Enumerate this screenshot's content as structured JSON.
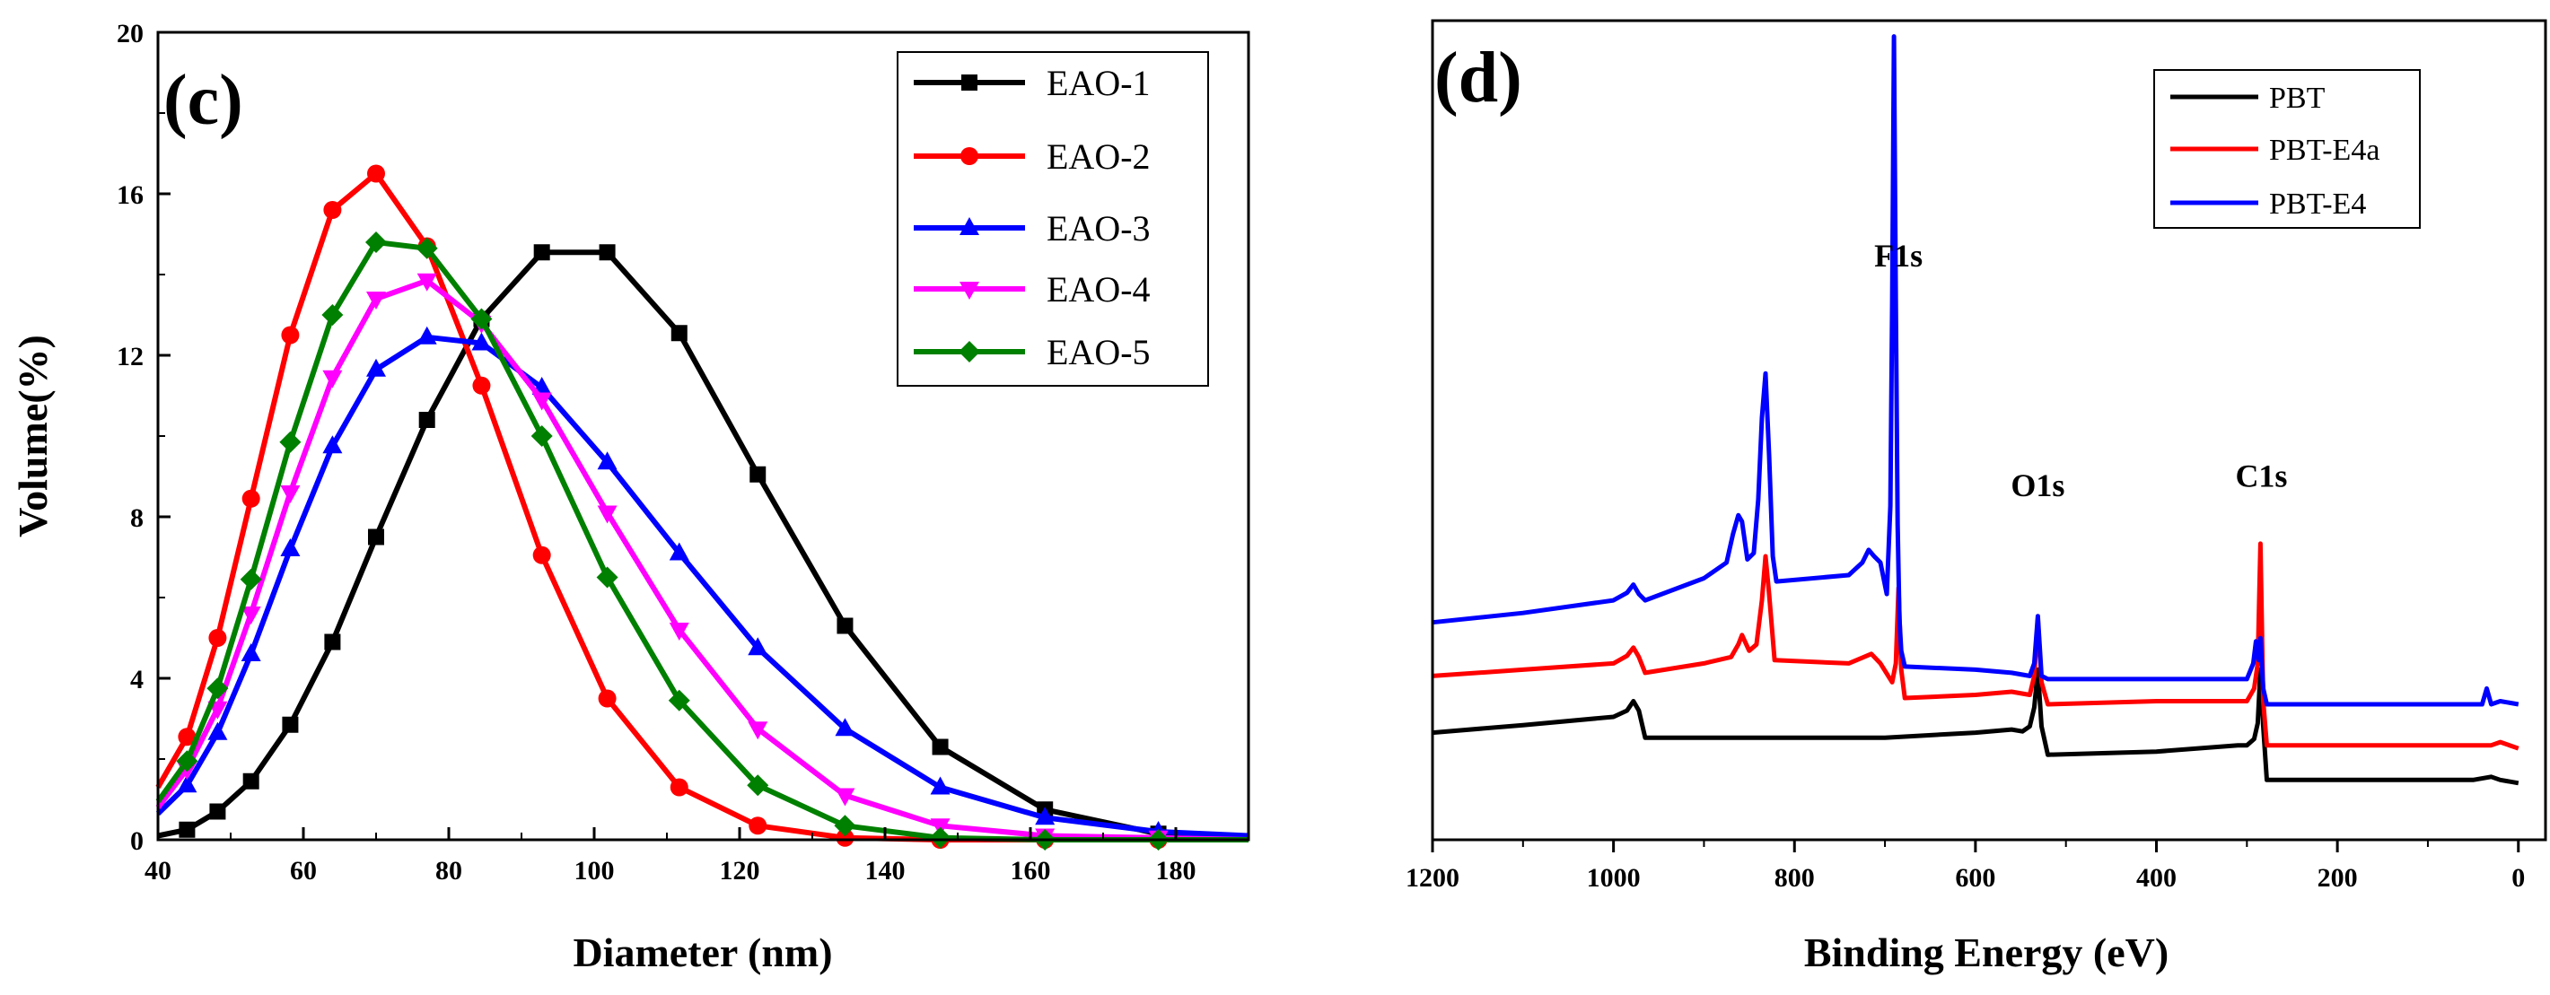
{
  "chart_data": [
    {
      "type": "line",
      "panel_label": "(c)",
      "xlabel": "Diameter (nm)",
      "ylabel": "Volume(%)",
      "xlim": [
        40,
        190
      ],
      "ylim": [
        0,
        20
      ],
      "xticks": [
        40,
        60,
        80,
        100,
        120,
        140,
        160,
        180
      ],
      "yticks": [
        0,
        4,
        8,
        12,
        16,
        20
      ],
      "grid": false,
      "legend_position": "top-right",
      "series": [
        {
          "name": "EAO-1",
          "color": "#000000",
          "marker": "square",
          "x": [
            40,
            44,
            48.2,
            52.8,
            58.2,
            64,
            70,
            77,
            84.5,
            92.8,
            101.8,
            111.7,
            122.5,
            134.5,
            147.6,
            162,
            177.6,
            190
          ],
          "y": [
            0.1,
            0.25,
            0.7,
            1.45,
            2.85,
            4.9,
            7.5,
            10.4,
            12.9,
            14.55,
            14.55,
            12.55,
            9.05,
            5.3,
            2.3,
            0.75,
            0.15,
            0.05
          ]
        },
        {
          "name": "EAO-2",
          "color": "#ff0000",
          "marker": "circle",
          "x": [
            40,
            44,
            48.2,
            52.8,
            58.2,
            64,
            70,
            77,
            84.5,
            92.8,
            101.8,
            111.7,
            122.5,
            134.5,
            147.6,
            162,
            177.6,
            190
          ],
          "y": [
            1.3,
            2.55,
            5.0,
            8.45,
            12.5,
            15.6,
            16.5,
            14.7,
            11.25,
            7.05,
            3.5,
            1.3,
            0.35,
            0.05,
            0,
            0,
            0,
            0
          ]
        },
        {
          "name": "EAO-3",
          "color": "#0000ff",
          "marker": "triangle-up",
          "x": [
            40,
            44,
            48.2,
            52.8,
            58.2,
            64,
            70,
            77,
            84.5,
            92.8,
            101.8,
            111.7,
            122.5,
            134.5,
            147.6,
            162,
            177.6,
            190
          ],
          "y": [
            0.65,
            1.35,
            2.65,
            4.6,
            7.2,
            9.75,
            11.65,
            12.45,
            12.3,
            11.2,
            9.35,
            7.1,
            4.75,
            2.75,
            1.3,
            0.55,
            0.2,
            0.1
          ]
        },
        {
          "name": "EAO-4",
          "color": "#ff00ff",
          "marker": "triangle-down",
          "x": [
            40,
            44,
            48.2,
            52.8,
            58.2,
            64,
            70,
            77,
            84.5,
            92.8,
            101.8,
            111.7,
            122.5,
            134.5,
            147.6,
            162,
            177.6,
            190
          ],
          "y": [
            0.8,
            1.75,
            3.25,
            5.6,
            8.6,
            11.45,
            13.4,
            13.85,
            12.8,
            10.9,
            8.1,
            5.2,
            2.75,
            1.1,
            0.35,
            0.1,
            0.05,
            0
          ]
        },
        {
          "name": "EAO-5",
          "color": "#008000",
          "marker": "diamond",
          "x": [
            40,
            44,
            48.2,
            52.8,
            58.2,
            64,
            70,
            77,
            84.5,
            92.8,
            101.8,
            111.7,
            122.5,
            134.5,
            147.6,
            162,
            177.6,
            190
          ],
          "y": [
            0.95,
            1.95,
            3.75,
            6.45,
            9.85,
            13.0,
            14.8,
            14.65,
            12.9,
            10.0,
            6.5,
            3.45,
            1.35,
            0.35,
            0.05,
            0,
            0,
            0
          ]
        }
      ]
    },
    {
      "type": "line",
      "panel_label": "(d)",
      "xlabel": "Binding Energy (eV)",
      "ylabel": "",
      "xlim": [
        1200,
        -30
      ],
      "ylim": [
        -1.5,
        11.5
      ],
      "xticks": [
        1200,
        1000,
        800,
        600,
        400,
        200,
        0
      ],
      "grid": false,
      "legend_position": "top-right",
      "peak_labels": [
        {
          "text": "F1s",
          "x": 685,
          "y": 7.6
        },
        {
          "text": "O1s",
          "x": 531,
          "y": 3.95
        },
        {
          "text": "C1s",
          "x": 284,
          "y": 4.1
        }
      ],
      "series": [
        {
          "name": "PBT",
          "color": "#000000",
          "x": [
            1200,
            1100,
            1000,
            985,
            978,
            972,
            965,
            850,
            700,
            600,
            560,
            548,
            540,
            535,
            531,
            527,
            520,
            400,
            310,
            300,
            292,
            288,
            285,
            282,
            278,
            200,
            100,
            50,
            30,
            20,
            0
          ],
          "y": [
            0.2,
            0.32,
            0.45,
            0.55,
            0.7,
            0.55,
            0.12,
            0.12,
            0.12,
            0.2,
            0.25,
            0.22,
            0.3,
            0.6,
            1.2,
            0.3,
            -0.15,
            -0.1,
            0.0,
            0.0,
            0.1,
            0.35,
            1.2,
            0.3,
            -0.55,
            -0.55,
            -0.55,
            -0.55,
            -0.5,
            -0.55,
            -0.6
          ]
        },
        {
          "name": "PBT-E4a",
          "color": "#ff0000",
          "x": [
            1200,
            1100,
            1000,
            985,
            978,
            972,
            965,
            900,
            870,
            862,
            858,
            850,
            842,
            836,
            832,
            828,
            822,
            740,
            715,
            705,
            692,
            688,
            685,
            682,
            678,
            600,
            560,
            540,
            535,
            531,
            527,
            520,
            400,
            300,
            292,
            288,
            285,
            282,
            278,
            200,
            100,
            30,
            20,
            0
          ],
          "y": [
            1.1,
            1.2,
            1.3,
            1.42,
            1.55,
            1.4,
            1.15,
            1.3,
            1.4,
            1.6,
            1.75,
            1.5,
            1.6,
            2.3,
            3.0,
            2.4,
            1.35,
            1.3,
            1.45,
            1.3,
            1.0,
            1.3,
            2.5,
            1.2,
            0.75,
            0.8,
            0.85,
            0.8,
            1.1,
            2.0,
            1.0,
            0.65,
            0.7,
            0.7,
            0.9,
            1.3,
            3.2,
            0.7,
            0.0,
            0.0,
            0.0,
            0.0,
            0.05,
            -0.05
          ]
        },
        {
          "name": "PBT-E4",
          "color": "#0000ff",
          "x": [
            1200,
            1100,
            1000,
            985,
            978,
            972,
            965,
            900,
            875,
            868,
            862,
            858,
            852,
            845,
            840,
            836,
            832,
            828,
            824,
            820,
            740,
            725,
            718,
            712,
            705,
            698,
            694,
            692,
            690,
            688,
            686,
            684,
            682,
            678,
            600,
            560,
            540,
            535,
            531,
            527,
            520,
            400,
            300,
            293,
            290,
            287,
            285,
            282,
            278,
            200,
            100,
            40,
            35,
            30,
            20,
            0
          ],
          "y": [
            1.95,
            2.1,
            2.3,
            2.42,
            2.55,
            2.4,
            2.3,
            2.65,
            2.9,
            3.35,
            3.65,
            3.55,
            2.95,
            3.05,
            3.9,
            5.2,
            5.9,
            4.6,
            3.0,
            2.6,
            2.7,
            2.9,
            3.1,
            3.0,
            2.9,
            2.4,
            3.8,
            7.0,
            11.25,
            7.0,
            3.5,
            2.0,
            1.5,
            1.25,
            1.2,
            1.15,
            1.1,
            1.3,
            2.05,
            1.1,
            1.05,
            1.05,
            1.05,
            1.3,
            1.65,
            1.35,
            1.7,
            0.9,
            0.65,
            0.65,
            0.65,
            0.65,
            0.9,
            0.65,
            0.7,
            0.65
          ]
        }
      ]
    }
  ]
}
